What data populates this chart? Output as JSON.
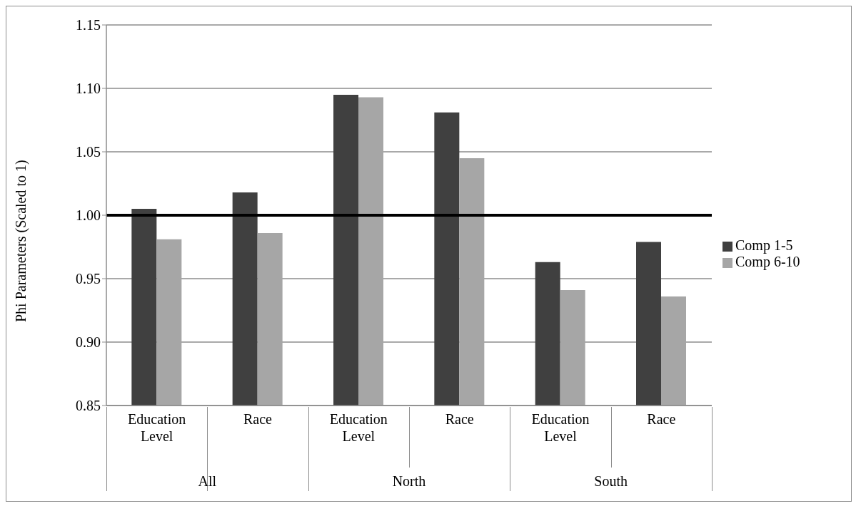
{
  "chart_data": {
    "type": "bar",
    "ylabel": "Phi Parameters (Scaled to 1)",
    "categories": [
      "Education Level",
      "Race",
      "Education Level",
      "Race",
      "Education Level",
      "Race"
    ],
    "series": [
      {
        "name": "Comp 1-5",
        "color": "#404040",
        "values": [
          1.005,
          1.018,
          1.095,
          1.081,
          0.963,
          0.979
        ]
      },
      {
        "name": "Comp 6-10",
        "color": "#a6a6a6",
        "values": [
          0.981,
          0.986,
          1.093,
          1.045,
          0.941,
          0.936
        ]
      }
    ],
    "ylim": [
      0.85,
      1.15
    ],
    "yticks": [
      {
        "value": 0.85,
        "label": "0.85"
      },
      {
        "value": 0.9,
        "label": "0.90"
      },
      {
        "value": 0.95,
        "label": "0.95"
      },
      {
        "value": 1.0,
        "label": "1.00"
      },
      {
        "value": 1.05,
        "label": "1.05"
      },
      {
        "value": 1.1,
        "label": "1.10"
      },
      {
        "value": 1.15,
        "label": "1.15"
      }
    ],
    "ref_lines": [
      {
        "axis": "y",
        "value": 1.0,
        "color": "#000000"
      }
    ],
    "annotations": [
      "All",
      "North",
      "South"
    ],
    "grid": "y",
    "legend": "right"
  }
}
